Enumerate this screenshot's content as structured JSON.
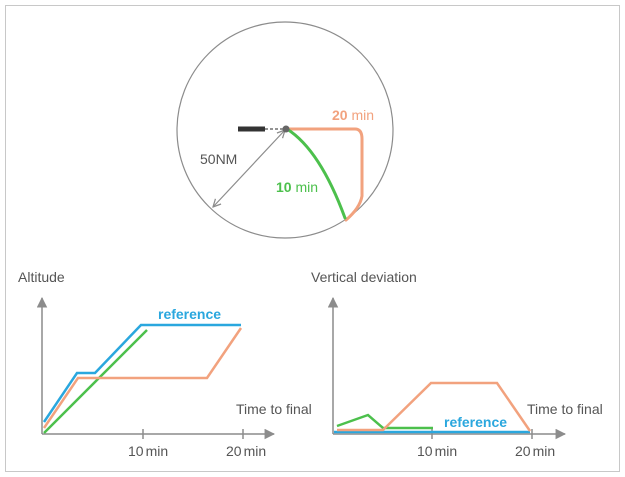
{
  "colors": {
    "orange": "#f2a27e",
    "green": "#4cc04c",
    "blue": "#2aa7de",
    "axis": "#8c8c8c",
    "text": "#555555",
    "runway": "#333333",
    "circle": "#8c8c8c"
  },
  "map": {
    "radius_label": "50NM",
    "label_20": {
      "num": "20",
      "unit": "min"
    },
    "label_10": {
      "num": "10",
      "unit": "min"
    }
  },
  "altitude_chart": {
    "ylabel": "Altitude",
    "xlabel": "Time to final",
    "ticks": [
      {
        "num": "10",
        "unit": "min"
      },
      {
        "num": "20",
        "unit": "min"
      }
    ],
    "reference_label": "reference"
  },
  "deviation_chart": {
    "ylabel": "Vertical deviation",
    "xlabel": "Time to final",
    "ticks": [
      {
        "num": "10",
        "unit": "min"
      },
      {
        "num": "20",
        "unit": "min"
      }
    ],
    "reference_label": "reference"
  }
}
